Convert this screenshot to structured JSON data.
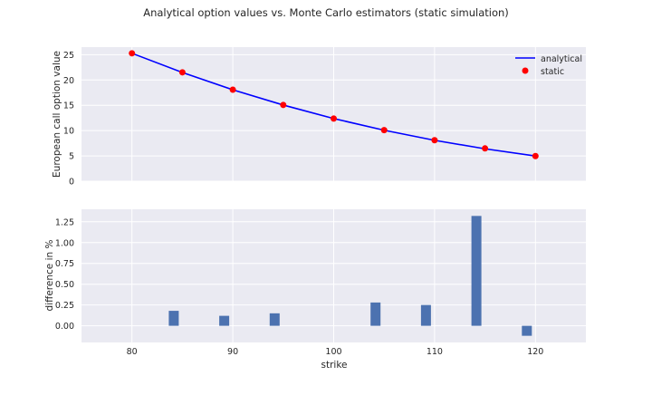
{
  "figure_title": "Analytical option values vs. Monte Carlo estimators (static simulation)",
  "chart_data": [
    {
      "type": "line",
      "title": "",
      "xlabel": "",
      "ylabel": "European call option value",
      "x": [
        80,
        85,
        90,
        95,
        100,
        105,
        110,
        115,
        120
      ],
      "xlim": [
        75,
        125
      ],
      "ylim": [
        0,
        26.5
      ],
      "yticks": [
        0,
        5,
        10,
        15,
        20,
        25
      ],
      "series": [
        {
          "name": "analytical",
          "style": "line",
          "color": "#0000ff",
          "values": [
            25.28,
            21.48,
            18.07,
            15.05,
            12.38,
            10.07,
            8.08,
            6.4,
            4.98
          ]
        },
        {
          "name": "static",
          "style": "markers",
          "color": "#ff0000",
          "values": [
            25.28,
            21.52,
            18.09,
            15.07,
            12.38,
            10.1,
            8.1,
            6.48,
            4.97
          ]
        }
      ],
      "legend": "top-right",
      "grid": true
    },
    {
      "type": "bar",
      "title": "",
      "xlabel": "strike",
      "ylabel": "difference in %",
      "x": [
        80,
        85,
        90,
        95,
        100,
        105,
        110,
        115,
        120
      ],
      "values": [
        0.0,
        0.18,
        0.12,
        0.15,
        0.0,
        0.28,
        0.25,
        1.32,
        -0.12
      ],
      "xlim": [
        75,
        125
      ],
      "ylim": [
        -0.2,
        1.4
      ],
      "yticks": [
        0.0,
        0.25,
        0.5,
        0.75,
        1.0,
        1.25
      ],
      "ytick_labels": [
        "0.00",
        "0.25",
        "0.50",
        "0.75",
        "1.00",
        "1.25"
      ],
      "xticks": [
        80,
        90,
        100,
        110,
        120
      ],
      "color": "#4c72b0",
      "grid": true
    }
  ]
}
